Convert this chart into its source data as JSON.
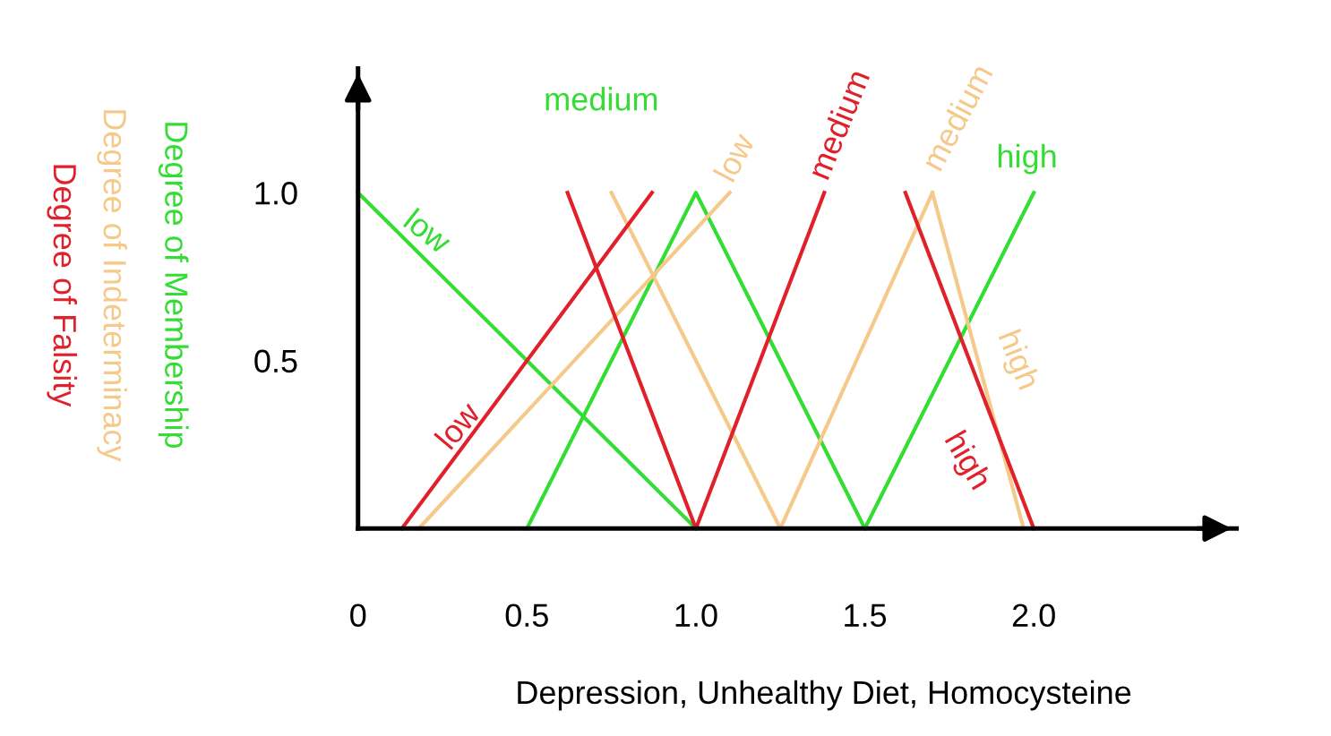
{
  "chart_data": {
    "type": "line",
    "xlabel": "Depression, Unhealthy Diet, Homocysteine",
    "ylabel": "Degree of Membership",
    "annotations": [
      "Degree of Indeterminacy",
      "Degree of Falsity"
    ],
    "xlim": [
      0,
      2.6
    ],
    "ylim": [
      0,
      1.37
    ],
    "xticks": [
      0,
      0.5,
      {
        "value": 1,
        "label": "1.0"
      },
      1.5,
      {
        "value": 2,
        "label": "2.0"
      }
    ],
    "yticks": [
      0.5,
      {
        "value": 1,
        "label": "1.0"
      }
    ],
    "grid": false,
    "legend": false,
    "marker": "none",
    "line_style": "solid",
    "series": [
      {
        "name": "low",
        "color": "#33dd33",
        "x": [
          0,
          1
        ],
        "values": [
          1,
          0
        ]
      },
      {
        "name": "medium",
        "color": "#33dd33",
        "x": [
          0.5,
          1,
          1.5
        ],
        "values": [
          0,
          1,
          0
        ]
      },
      {
        "name": "high",
        "color": "#33dd33",
        "x": [
          1.5,
          2
        ],
        "values": [
          0,
          1
        ]
      },
      {
        "name": "low",
        "color": "#f5c98a",
        "x": [
          0.18,
          1.1
        ],
        "values": [
          0,
          1
        ]
      },
      {
        "name": "medium",
        "color": "#f5c98a",
        "x": [
          0.75,
          1.25,
          1.7
        ],
        "values": [
          1,
          0,
          1
        ]
      },
      {
        "name": "high",
        "color": "#f5c98a",
        "x": [
          1.7,
          1.97
        ],
        "values": [
          1,
          0
        ]
      },
      {
        "name": "low",
        "color": "#e0202a",
        "x": [
          0.13,
          0.87
        ],
        "values": [
          0,
          1
        ]
      },
      {
        "name": "medium",
        "color": "#e0202a",
        "x": [
          0.62,
          1,
          1.38
        ],
        "values": [
          1,
          0,
          1
        ]
      },
      {
        "name": "high",
        "color": "#e0202a",
        "x": [
          1.62,
          2
        ],
        "values": [
          1,
          0
        ]
      }
    ]
  }
}
